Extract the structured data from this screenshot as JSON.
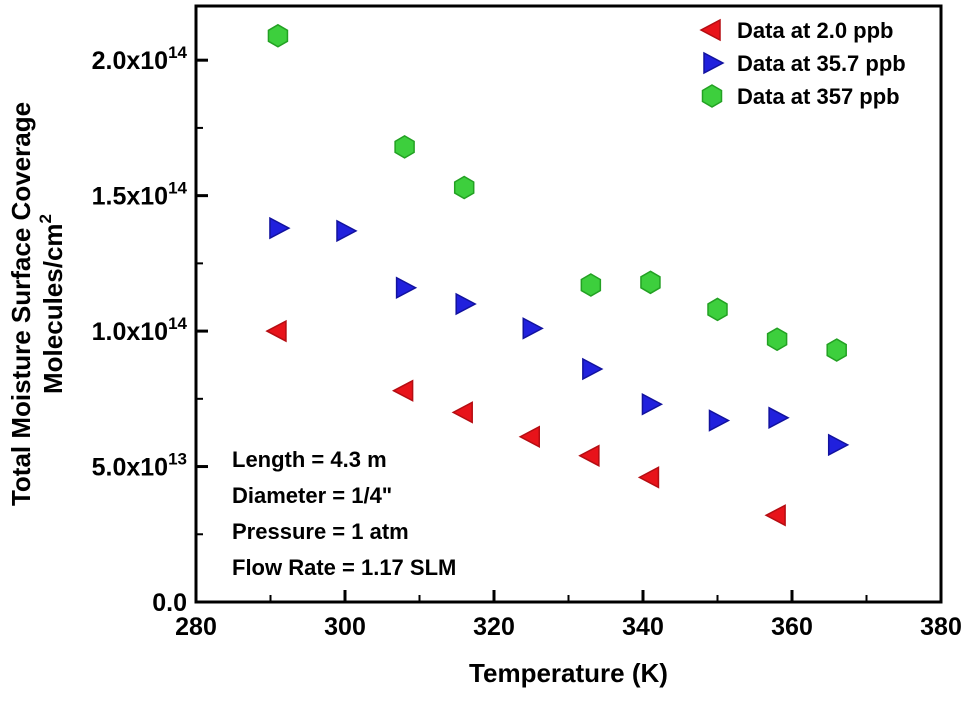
{
  "chart_data": {
    "type": "scatter",
    "title": "",
    "xlabel": "Temperature (K)",
    "ylabel": {
      "line1": "Total Moisture Surface Coverage",
      "line2_base": "Molecules/cm",
      "line2_sup": "2"
    },
    "xlim": [
      280,
      380
    ],
    "ylim": [
      0,
      220000000000000.0
    ],
    "x_major_ticks": [
      280,
      300,
      320,
      340,
      360,
      380
    ],
    "x_tick_labels": [
      "280",
      "300",
      "320",
      "340",
      "360",
      "380"
    ],
    "x_minor_ticks": [
      290,
      310,
      330,
      350,
      370
    ],
    "y_major_ticks": [
      {
        "value": 0,
        "base": "0.0",
        "sup": ""
      },
      {
        "value": 50000000000000.0,
        "base": "5.0x10",
        "sup": "13"
      },
      {
        "value": 100000000000000.0,
        "base": "1.0x10",
        "sup": "14"
      },
      {
        "value": 150000000000000.0,
        "base": "1.5x10",
        "sup": "14"
      },
      {
        "value": 200000000000000.0,
        "base": "2.0x10",
        "sup": "14"
      }
    ],
    "y_minor_ticks": [
      25000000000000.0,
      75000000000000.0,
      125000000000000.0,
      175000000000000.0
    ],
    "grid": false,
    "legend_position": "top-right-inside",
    "axis_color": "#000000",
    "background": "#ffffff",
    "series": [
      {
        "name": "Data at 2.0 ppb",
        "marker": "triangle-left",
        "color": "#e8131a",
        "edge": "#b50d12",
        "points": [
          [
            291,
            100000000000000.0
          ],
          [
            308,
            78000000000000.0
          ],
          [
            316,
            70000000000000.0
          ],
          [
            325,
            61000000000000.0
          ],
          [
            333,
            54000000000000.0
          ],
          [
            341,
            46000000000000.0
          ],
          [
            358,
            32000000000000.0
          ]
        ]
      },
      {
        "name": "Data at 35.7 ppb",
        "marker": "triangle-right",
        "color": "#2020dd",
        "edge": "#12129e",
        "points": [
          [
            291,
            138000000000000.0
          ],
          [
            300,
            137000000000000.0
          ],
          [
            308,
            116000000000000.0
          ],
          [
            316,
            110000000000000.0
          ],
          [
            325,
            101000000000000.0
          ],
          [
            333,
            86000000000000.0
          ],
          [
            341,
            73000000000000.0
          ],
          [
            350,
            67000000000000.0
          ],
          [
            358,
            68000000000000.0
          ],
          [
            366,
            58000000000000.0
          ]
        ]
      },
      {
        "name": "Data at 357 ppb",
        "marker": "hexagon",
        "color": "#3dcf3d",
        "edge": "#23a123",
        "points": [
          [
            291,
            209000000000000.0
          ],
          [
            308,
            168000000000000.0
          ],
          [
            316,
            153000000000000.0
          ],
          [
            333,
            117000000000000.0
          ],
          [
            341,
            118000000000000.0
          ],
          [
            350,
            108000000000000.0
          ],
          [
            358,
            97000000000000.0
          ],
          [
            366,
            93000000000000.0
          ]
        ]
      }
    ],
    "annotations": [
      "Length = 4.3 m",
      "Diameter = 1/4\"",
      "Pressure = 1 atm",
      "Flow Rate = 1.17 SLM"
    ]
  }
}
